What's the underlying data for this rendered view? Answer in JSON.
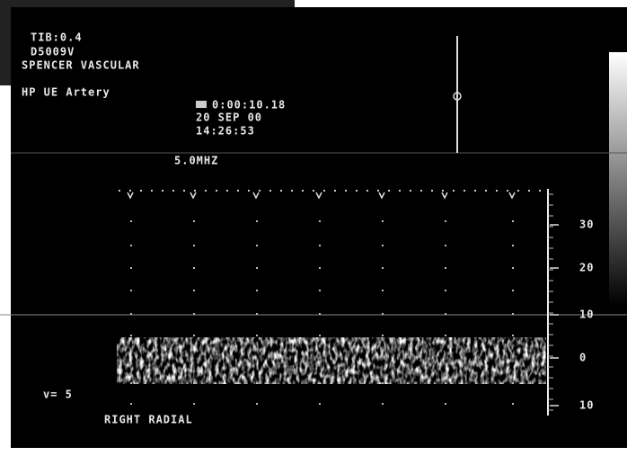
{
  "header": {
    "index": "TIB:0.4",
    "probe": "D5009V",
    "site": "SPENCER VASCULAR",
    "exam": "HP UE Artery"
  },
  "clock": {
    "elapsed": "0:00:10.18",
    "date": "20 SEP 00",
    "time": "14:26:53"
  },
  "frequency": "5.0MHZ",
  "scale": {
    "labels": [
      "30",
      "20",
      "10",
      "0",
      "10"
    ]
  },
  "footer": {
    "gain": "v= 5",
    "vessel": "RIGHT RADIAL"
  }
}
